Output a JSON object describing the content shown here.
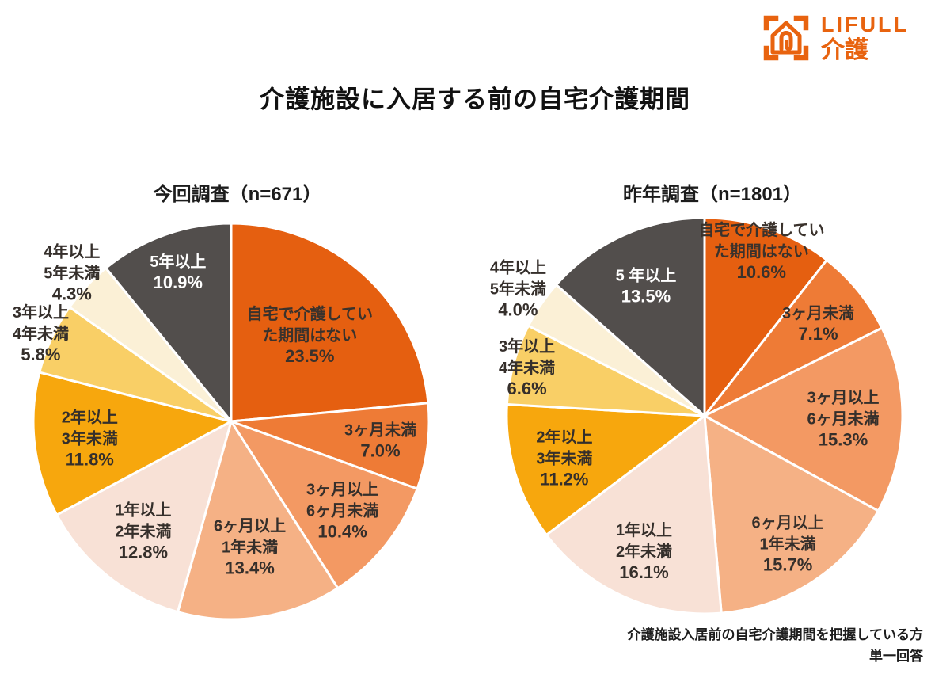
{
  "logo": {
    "brand": "LIFULL",
    "service": "介護",
    "color": "#E8630F"
  },
  "title": "介護施設に入居する前の自宅介護期間",
  "footnote": {
    "line1": "介護施設入居前の自宅介護期間を把握している方",
    "line2": "単一回答"
  },
  "chart_data": [
    {
      "type": "pie",
      "title": "今回調査（n=671）",
      "n": 671,
      "legend_position": "none",
      "start_angle_deg": 0,
      "slices": [
        {
          "label": "自宅で介護していた期間はない",
          "value": 23.5,
          "display": "23.5%",
          "color": "#E55F10",
          "text_color": "#3A322C",
          "lines": [
            "自宅で介護してい",
            "た期間はない",
            "23.5%"
          ],
          "label_r": 0.59
        },
        {
          "label": "3ヶ月未満",
          "value": 7.0,
          "display": "7.0%",
          "color": "#EE7B36",
          "text_color": "#352F2B",
          "lines": [
            "3ヶ月未満",
            "7.0%"
          ],
          "label_r": 0.76
        },
        {
          "label": "3ヶ月以上6ヶ月未満",
          "value": 10.4,
          "display": "10.4%",
          "color": "#F39963",
          "text_color": "#352F2B",
          "lines": [
            "3ヶ月以上",
            "6ヶ月未満",
            "10.4%"
          ],
          "label_r": 0.72
        },
        {
          "label": "6ヶ月以上1年未満",
          "value": 13.4,
          "display": "13.4%",
          "color": "#F5B185",
          "text_color": "#352F2B",
          "lines": [
            "6ヶ月以上",
            "1年未満",
            "13.4%"
          ],
          "label_r": 0.64
        },
        {
          "label": "1年以上2年未満",
          "value": 12.8,
          "display": "12.8%",
          "color": "#F8E1D6",
          "text_color": "#352F2B",
          "lines": [
            "1年以上",
            "2年未満",
            "12.8%"
          ],
          "label_r": 0.71
        },
        {
          "label": "2年以上3年未満",
          "value": 11.8,
          "display": "11.8%",
          "color": "#F7A70D",
          "text_color": "#352F2B",
          "lines": [
            "2年以上",
            "3年未満",
            "11.8%"
          ],
          "label_r": 0.72
        },
        {
          "label": "3年以上4年未満",
          "value": 5.8,
          "display": "5.8%",
          "color": "#F9CF66",
          "text_color": "#352F2B",
          "lines": [
            "3年以上",
            "4年未満",
            "5.8%"
          ],
          "label_r": 1.06
        },
        {
          "label": "4年以上5年未満",
          "value": 4.3,
          "display": "4.3%",
          "color": "#FBF0D6",
          "text_color": "#352F2B",
          "lines": [
            "4年以上",
            "5年未満",
            "4.3%"
          ],
          "label_r": 1.1
        },
        {
          "label": "5年以上",
          "value": 10.9,
          "display": "10.9%",
          "color": "#524E4C",
          "text_color": "#FFFFFF",
          "lines": [
            "5年以上",
            "10.9%"
          ],
          "label_r": 0.8
        }
      ]
    },
    {
      "type": "pie",
      "title": "昨年調査（n=1801）",
      "n": 1801,
      "legend_position": "none",
      "start_angle_deg": 0,
      "slices": [
        {
          "label": "自宅で介護していた期間はない",
          "value": 10.6,
          "display": "10.6%",
          "color": "#E55F10",
          "text_color": "#3A322C",
          "lines": [
            "自宅で介護してい",
            "た期間はない",
            "10.6%"
          ],
          "label_r": 0.88
        },
        {
          "label": "3ヶ月未満",
          "value": 7.1,
          "display": "7.1%",
          "color": "#EE7B36",
          "text_color": "#352F2B",
          "lines": [
            "3ヶ月未満",
            "7.1%"
          ],
          "label_r": 0.74
        },
        {
          "label": "3ヶ月以上6ヶ月未満",
          "value": 15.3,
          "display": "15.3%",
          "color": "#F39963",
          "text_color": "#352F2B",
          "lines": [
            "3ヶ月以上",
            "6ヶ月未満",
            "15.3%"
          ],
          "label_r": 0.7
        },
        {
          "label": "6ヶ月以上1年未満",
          "value": 15.7,
          "display": "15.7%",
          "color": "#F5B185",
          "text_color": "#352F2B",
          "lines": [
            "6ヶ月以上",
            "1年未満",
            "15.7%"
          ],
          "label_r": 0.77
        },
        {
          "label": "1年以上2年未満",
          "value": 16.1,
          "display": "16.1%",
          "color": "#F8E1D6",
          "text_color": "#352F2B",
          "lines": [
            "1年以上",
            "2年未満",
            "16.1%"
          ],
          "label_r": 0.75
        },
        {
          "label": "2年以上3年未満",
          "value": 11.2,
          "display": "11.2%",
          "color": "#F7A70D",
          "text_color": "#352F2B",
          "lines": [
            "2年以上",
            "3年未満",
            "11.2%"
          ],
          "label_r": 0.74
        },
        {
          "label": "3年以上4年未満",
          "value": 6.6,
          "display": "6.6%",
          "color": "#F9CF66",
          "text_color": "#352F2B",
          "lines": [
            "3年以上",
            "4年未満",
            "6.6%"
          ],
          "label_r": 0.93
        },
        {
          "label": "4年以上5年未満",
          "value": 4.0,
          "display": "4.0%",
          "color": "#FBF0D6",
          "text_color": "#352F2B",
          "lines": [
            "4年以上",
            "5年未満",
            "4.0%"
          ],
          "label_r": 1.14
        },
        {
          "label": "5年以上",
          "value": 13.5,
          "display": "13.5%",
          "color": "#524E4C",
          "text_color": "#FFFFFF",
          "lines": [
            "5 年以上",
            "13.5%"
          ],
          "label_r": 0.72
        }
      ]
    }
  ]
}
